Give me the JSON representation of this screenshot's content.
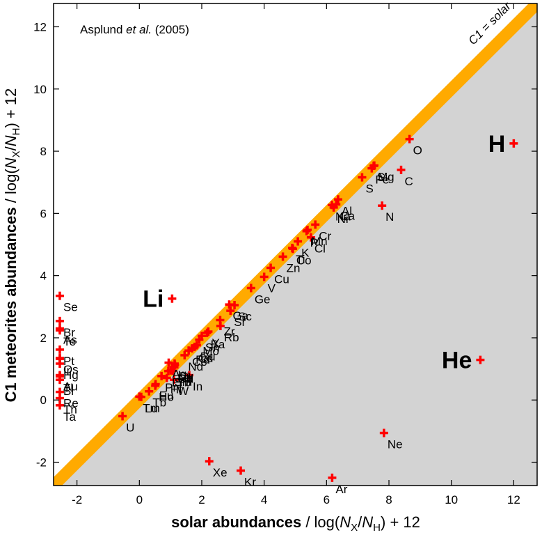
{
  "chart_data": {
    "type": "scatter",
    "annotation_prefix": "Asplund ",
    "annotation_etal": "et al.",
    "annotation_year": " (2005)",
    "band_label": "C1 = solar",
    "xlabel": {
      "bold": "solar abundances",
      "rest": " / log(",
      "var1": "N",
      "sub1": "X",
      "slash": "/",
      "var2": "N",
      "sub2": "H",
      "tail": ") + 12"
    },
    "ylabel": {
      "bold": "C1 meteorites abundances",
      "rest": " / log(",
      "var1": "N",
      "sub1": "X",
      "slash": "/",
      "var2": "N",
      "sub2": "H",
      "tail": ") + 12"
    },
    "xlim": [
      -2.75,
      12.75
    ],
    "ylim": [
      -2.75,
      12.75
    ],
    "xticks": [
      "-2",
      "0",
      "2",
      "4",
      "6",
      "8",
      "10",
      "12"
    ],
    "yticks": [
      "-2",
      "0",
      "2",
      "4",
      "6",
      "8",
      "10",
      "12"
    ],
    "grid": false,
    "colors": {
      "marker": "#ff0000",
      "band": "#ffaa00",
      "region": "#d3d3d3"
    },
    "labeled_points": [
      {
        "name": "H",
        "x": 12.0,
        "y": 8.25,
        "big": true
      },
      {
        "name": "He",
        "x": 10.93,
        "y": 1.29,
        "big": true
      },
      {
        "name": "Li",
        "x": 1.05,
        "y": 3.26,
        "big": true
      },
      {
        "name": "O",
        "x": 8.66,
        "y": 8.39
      },
      {
        "name": "C",
        "x": 8.39,
        "y": 7.4
      },
      {
        "name": "N",
        "x": 7.78,
        "y": 6.25
      },
      {
        "name": "Ne",
        "x": 7.84,
        "y": -1.06
      },
      {
        "name": "Ar",
        "x": 6.18,
        "y": -2.5
      },
      {
        "name": "Kr",
        "x": 3.25,
        "y": -2.27
      },
      {
        "name": "Xe",
        "x": 2.24,
        "y": -1.97
      },
      {
        "name": "Mg",
        "x": 7.53,
        "y": 7.54
      },
      {
        "name": "Si",
        "x": 7.51,
        "y": 7.53
      },
      {
        "name": "Fe",
        "x": 7.45,
        "y": 7.45
      },
      {
        "name": "S",
        "x": 7.14,
        "y": 7.16
      },
      {
        "name": "Al",
        "x": 6.37,
        "y": 6.45
      },
      {
        "name": "Ca",
        "x": 6.31,
        "y": 6.29
      },
      {
        "name": "Ni",
        "x": 6.23,
        "y": 6.19
      },
      {
        "name": "Na",
        "x": 6.17,
        "y": 6.27
      },
      {
        "name": "Cr",
        "x": 5.64,
        "y": 5.64
      },
      {
        "name": "Mn",
        "x": 5.39,
        "y": 5.47
      },
      {
        "name": "P",
        "x": 5.36,
        "y": 5.43
      },
      {
        "name": "K",
        "x": 5.08,
        "y": 5.1
      },
      {
        "name": "Cl",
        "x": 5.5,
        "y": 5.23
      },
      {
        "name": "Ti",
        "x": 4.9,
        "y": 4.89
      },
      {
        "name": "Co",
        "x": 4.92,
        "y": 4.86
      },
      {
        "name": "Zn",
        "x": 4.6,
        "y": 4.61
      },
      {
        "name": "Cu",
        "x": 4.21,
        "y": 4.25
      },
      {
        "name": "V",
        "x": 4.0,
        "y": 3.96
      },
      {
        "name": "Ge",
        "x": 3.58,
        "y": 3.6
      },
      {
        "name": "Sc",
        "x": 3.05,
        "y": 3.05
      },
      {
        "name": "Ga",
        "x": 2.88,
        "y": 3.07
      },
      {
        "name": "Sr",
        "x": 2.92,
        "y": 2.87
      },
      {
        "name": "Zr",
        "x": 2.59,
        "y": 2.57
      },
      {
        "name": "Rb",
        "x": 2.6,
        "y": 2.38
      },
      {
        "name": "Y",
        "x": 2.21,
        "y": 2.2
      },
      {
        "name": "Sn",
        "x": 2.0,
        "y": 2.06
      },
      {
        "name": "Ba",
        "x": 2.17,
        "y": 2.16
      },
      {
        "name": "Nd",
        "x": 1.45,
        "y": 1.44
      },
      {
        "name": "Mo",
        "x": 1.92,
        "y": 1.94
      },
      {
        "name": "Ce",
        "x": 1.58,
        "y": 1.59
      },
      {
        "name": "Pd",
        "x": 1.69,
        "y": 1.66
      },
      {
        "name": "Ru",
        "x": 1.84,
        "y": 1.76
      },
      {
        "name": "La",
        "x": 1.13,
        "y": 1.17
      },
      {
        "name": "Sm",
        "x": 1.01,
        "y": 0.95
      },
      {
        "name": "Gd",
        "x": 1.12,
        "y": 1.05
      },
      {
        "name": "Dy",
        "x": 1.14,
        "y": 1.13
      },
      {
        "name": "Er",
        "x": 0.93,
        "y": 0.93
      },
      {
        "name": "Yb",
        "x": 1.08,
        "y": 0.94
      },
      {
        "name": "Pr",
        "x": 0.71,
        "y": 0.77
      },
      {
        "name": "Ag",
        "x": 0.94,
        "y": 1.2
      },
      {
        "name": "Cd",
        "x": 1.77,
        "y": 1.71
      },
      {
        "name": "Hf",
        "x": 0.88,
        "y": 0.71
      },
      {
        "name": "W",
        "x": 1.11,
        "y": 0.65
      },
      {
        "name": "Rh",
        "x": 1.12,
        "y": 1.06
      },
      {
        "name": "In",
        "x": 1.6,
        "y": 0.8
      },
      {
        "name": "Eu",
        "x": 0.52,
        "y": 0.51
      },
      {
        "name": "Ho",
        "x": 0.51,
        "y": 0.46
      },
      {
        "name": "Tb",
        "x": 0.31,
        "y": 0.28
      },
      {
        "name": "Tm",
        "x": 0.0,
        "y": 0.11
      },
      {
        "name": "Lu",
        "x": 0.06,
        "y": 0.1
      },
      {
        "name": "U",
        "x": -0.54,
        "y": -0.52
      },
      {
        "name": "Se",
        "x": -2.55,
        "y": 3.35
      },
      {
        "name": "Br",
        "x": -2.55,
        "y": 2.54
      },
      {
        "name": "As",
        "x": -2.55,
        "y": 2.3
      },
      {
        "name": "Te",
        "x": -2.55,
        "y": 2.24
      },
      {
        "name": "Pt",
        "x": -2.55,
        "y": 1.62
      },
      {
        "name": "Os",
        "x": -2.55,
        "y": 1.35
      },
      {
        "name": "Ir",
        "x": -2.55,
        "y": 1.32
      },
      {
        "name": "Hg",
        "x": -2.55,
        "y": 1.17
      },
      {
        "name": "Au",
        "x": -2.55,
        "y": 0.8
      },
      {
        "name": "Bi",
        "x": -2.55,
        "y": 0.65
      },
      {
        "name": "Re",
        "x": -2.55,
        "y": 0.26
      },
      {
        "name": "Tl",
        "x": -2.55,
        "y": 0.76
      },
      {
        "name": "Th",
        "x": -2.55,
        "y": 0.06
      },
      {
        "name": "Ta",
        "x": -2.55,
        "y": -0.17
      }
    ]
  }
}
